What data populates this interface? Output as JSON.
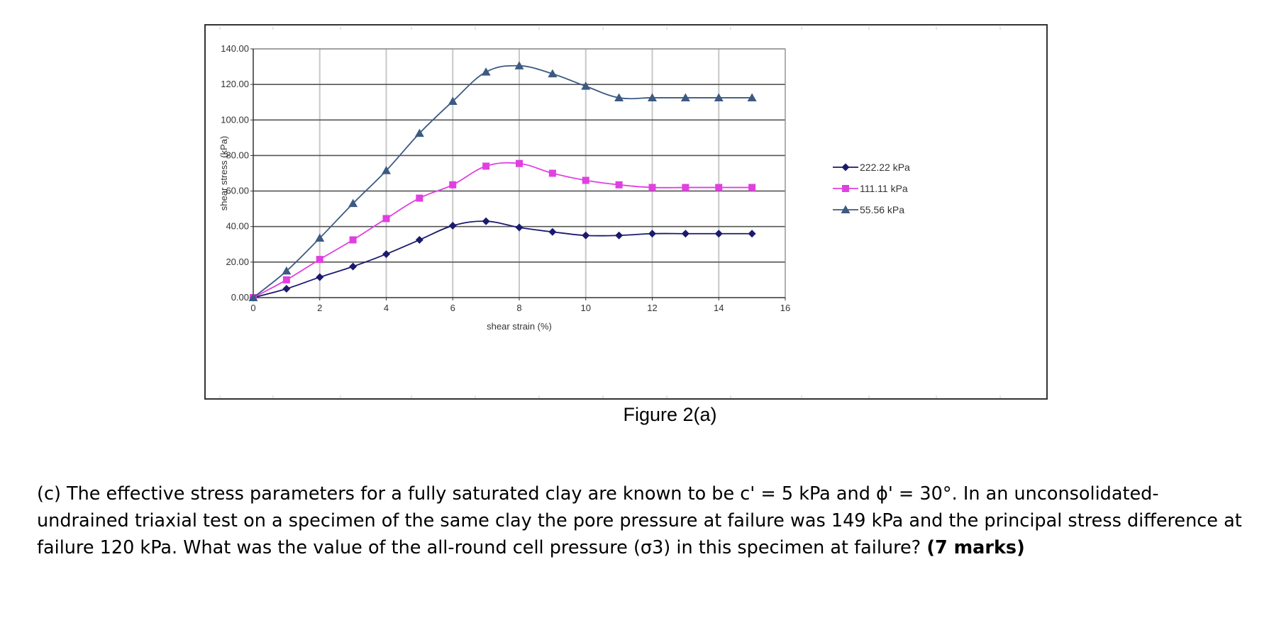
{
  "chart_data": {
    "type": "line",
    "title": "",
    "xlabel": "shear strain (%)",
    "ylabel": "shear stress (kPa)",
    "xlim": [
      0,
      16
    ],
    "ylim": [
      0,
      140
    ],
    "xticks": [
      "0",
      "2",
      "4",
      "6",
      "8",
      "10",
      "12",
      "14",
      "16"
    ],
    "yticks": [
      "0.00",
      "20.00",
      "40.00",
      "60.00",
      "80.00",
      "100.00",
      "120.00",
      "140.00"
    ],
    "grid": true,
    "legend_position": "right",
    "x": [
      0,
      1,
      2,
      3,
      4,
      5,
      6,
      7,
      8,
      9,
      10,
      11,
      12,
      13,
      14,
      15
    ],
    "series": [
      {
        "name": "222.22 kPa",
        "color": "#1a1a6e",
        "marker": "diamond",
        "values": [
          0,
          5,
          11.5,
          17.5,
          24.5,
          32.5,
          40.5,
          43,
          39.5,
          37,
          35,
          35,
          36,
          36,
          36,
          36
        ]
      },
      {
        "name": "111.11 kPa",
        "color": "#e040e0",
        "marker": "square",
        "values": [
          0,
          10,
          21.5,
          32.5,
          44.5,
          56,
          63.5,
          74,
          75.5,
          70,
          66,
          63.5,
          62,
          62,
          62,
          62
        ]
      },
      {
        "name": "55.56 kPa",
        "color": "#3c5a82",
        "marker": "triangle",
        "values": [
          0,
          15,
          33.5,
          53,
          71.5,
          92.5,
          110.5,
          127,
          130.5,
          126,
          119,
          112.5,
          112.5,
          112.5,
          112.5,
          112.5
        ]
      }
    ]
  },
  "caption": "Figure 2(a)",
  "question": {
    "text": "(c) The effective stress parameters for a fully saturated clay are known to be c' = 5 kPa and ϕ' = 30°. In an unconsolidated-undrained triaxial test on a specimen of the same clay the pore pressure at failure was 149 kPa and the principal stress difference at failure 120 kPa. What was the value of the all-round cell pressure (σ3) in this specimen at failure?",
    "marks": "(7 marks)"
  }
}
